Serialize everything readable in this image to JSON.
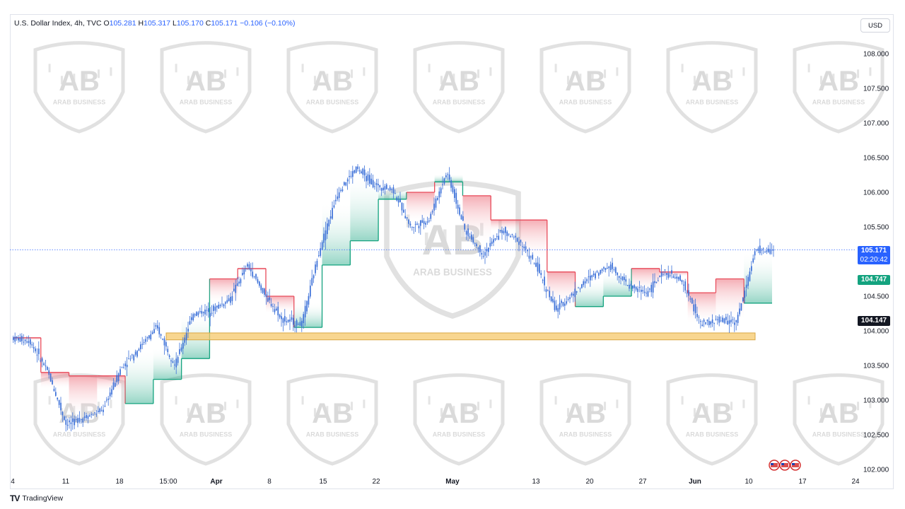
{
  "header": {
    "symbol": "U.S. Dollar Index, 4h, TVC",
    "open_label": "O",
    "open": "105.281",
    "high_label": "H",
    "high": "105.317",
    "low_label": "L",
    "low": "105.170",
    "close_label": "C",
    "close": "105.171",
    "change": "−0.106 (−0.10%)"
  },
  "currency": "USD",
  "price_labels": {
    "last": "105.171",
    "countdown": "02:20:42",
    "upper": "104.747",
    "lower": "104.147"
  },
  "watermark": {
    "monogram": "AB",
    "name": "ARAB BUSINESS"
  },
  "footer": {
    "brand": "TradingView",
    "logo": "TV"
  },
  "colors": {
    "candle": "#3a6fd8",
    "support_zone": "#f5c86b",
    "bull_band": "#14a37f",
    "bear_band": "#e84a5a",
    "last_price": "#2962ff",
    "upper_tag": "#14a37f",
    "lower_tag": "#131722"
  },
  "chart_data": {
    "type": "line",
    "title": "U.S. Dollar Index, 4h, TVC",
    "xlabel": "",
    "ylabel": "",
    "x_tick_labels": [
      "4",
      "11",
      "18",
      "15:00",
      "Apr",
      "8",
      "15",
      "22",
      "May",
      "13",
      "20",
      "27",
      "Jun",
      "10",
      "17",
      "24"
    ],
    "y_tick_labels": [
      "108.000",
      "107.500",
      "107.000",
      "106.500",
      "106.000",
      "105.500",
      "105.000",
      "104.500",
      "104.000",
      "103.500",
      "103.000",
      "102.500",
      "102.000"
    ],
    "ylim": [
      102.0,
      108.0
    ],
    "y_scale": "linear",
    "grid": false,
    "series": [
      {
        "kind": "candlestick",
        "x": [
          "4",
          "6",
          "8",
          "11",
          "13",
          "15",
          "18",
          "19",
          "21",
          "15:00",
          "26",
          "28",
          "Apr",
          "3",
          "5",
          "8",
          "10",
          "12",
          "15",
          "17",
          "19",
          "22",
          "24",
          "26",
          "May",
          "2",
          "6",
          "8",
          "10",
          "13",
          "15",
          "17",
          "20",
          "22",
          "24",
          "27",
          "29",
          "31",
          "Jun",
          "5",
          "7",
          "10",
          "12"
        ],
        "values": [
          103.9,
          103.85,
          103.4,
          102.65,
          102.75,
          102.85,
          103.45,
          103.75,
          104.05,
          103.5,
          104.25,
          104.3,
          104.45,
          104.95,
          104.5,
          104.15,
          104.1,
          105.2,
          106.0,
          106.35,
          106.1,
          106.05,
          105.5,
          105.6,
          106.3,
          105.45,
          105.1,
          105.45,
          105.3,
          104.9,
          104.3,
          104.55,
          104.8,
          104.95,
          104.65,
          104.55,
          104.85,
          104.7,
          104.1,
          104.15,
          104.15,
          105.15,
          105.171
        ]
      },
      {
        "kind": "trailing-stop",
        "x": [
          "4",
          "8",
          "11",
          "15",
          "18",
          "21",
          "15:00",
          "Apr",
          "5",
          "8",
          "12",
          "15",
          "19",
          "22",
          "26",
          "May",
          "6",
          "10",
          "13",
          "17",
          "20",
          "24",
          "27",
          "31",
          "Jun",
          "5",
          "10",
          "12"
        ],
        "values": [
          103.9,
          103.4,
          103.35,
          103.35,
          102.95,
          103.3,
          103.6,
          104.75,
          104.9,
          104.5,
          104.05,
          104.95,
          105.3,
          105.9,
          106.0,
          106.15,
          105.95,
          105.6,
          105.6,
          104.85,
          104.35,
          104.5,
          104.9,
          104.85,
          104.55,
          104.75,
          104.4,
          104.72
        ]
      }
    ],
    "annotations": [
      {
        "kind": "support-zone",
        "y_range": [
          103.87,
          103.97
        ],
        "x_start": "15:00",
        "x_end": "10"
      },
      {
        "kind": "horizontal-line",
        "y": 105.171,
        "style": "dotted"
      }
    ],
    "legend": "none"
  }
}
